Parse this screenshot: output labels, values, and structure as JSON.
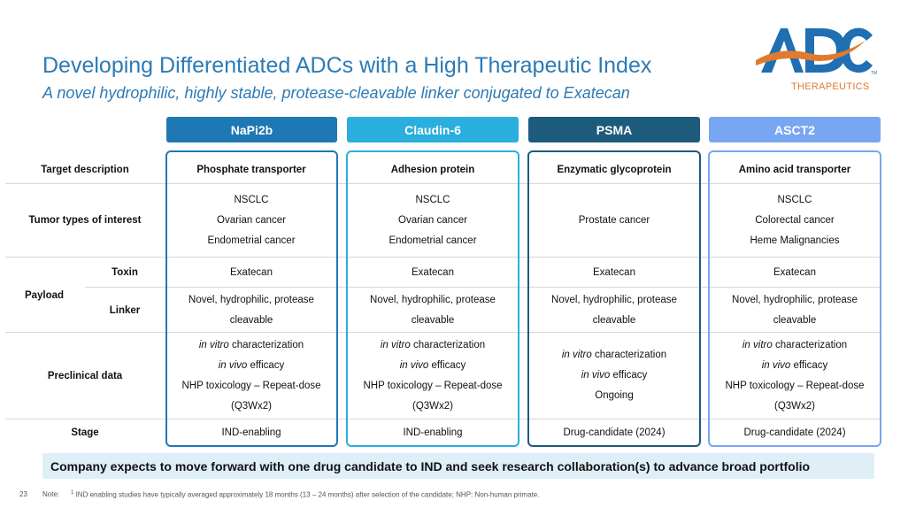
{
  "header": {
    "title": "Developing Differentiated ADCs with a High Therapeutic Index",
    "subtitle": "A novel hydrophilic, highly stable, protease-cleavable linker conjugated to Exatecan"
  },
  "logo": {
    "mark": "ADC",
    "tagline": "THERAPEUTICS",
    "tm": "TM",
    "colors": {
      "blue": "#1f6fb2",
      "orange": "#e07a2f"
    }
  },
  "row_labels": {
    "target": "Target description",
    "tumor": "Tumor types of interest",
    "payload": "Payload",
    "toxin": "Toxin",
    "linker": "Linker",
    "preclinical": "Preclinical data",
    "stage": "Stage"
  },
  "columns": [
    {
      "name": "NaPi2b",
      "color": "#1e78b4",
      "target": "Phosphate transporter",
      "tumor": [
        "NSCLC",
        "Ovarian cancer",
        "Endometrial cancer"
      ],
      "toxin": "Exatecan",
      "linker": [
        "Novel, hydrophilic, protease",
        "cleavable"
      ],
      "preclinical": [
        {
          "em": "in vitro",
          "rest": " characterization"
        },
        {
          "em": "in vivo",
          "rest": " efficacy"
        },
        {
          "em": "",
          "rest": "NHP toxicology – Repeat-dose"
        },
        {
          "em": "",
          "rest": "(Q3Wx2)"
        }
      ],
      "stage": "IND-enabling"
    },
    {
      "name": "Claudin-6",
      "color": "#2aaedd",
      "target": "Adhesion protein",
      "tumor": [
        "NSCLC",
        "Ovarian cancer",
        "Endometrial cancer"
      ],
      "toxin": "Exatecan",
      "linker": [
        "Novel, hydrophilic, protease",
        "cleavable"
      ],
      "preclinical": [
        {
          "em": "in vitro",
          "rest": " characterization"
        },
        {
          "em": "in vivo",
          "rest": " efficacy"
        },
        {
          "em": "",
          "rest": "NHP toxicology – Repeat-dose"
        },
        {
          "em": "",
          "rest": "(Q3Wx2)"
        }
      ],
      "stage": "IND-enabling"
    },
    {
      "name": "PSMA",
      "color": "#1d5b7c",
      "target": "Enzymatic glycoprotein",
      "tumor": [
        "Prostate cancer"
      ],
      "toxin": "Exatecan",
      "linker": [
        "Novel, hydrophilic, protease",
        "cleavable"
      ],
      "preclinical": [
        {
          "em": "in vitro",
          "rest": " characterization"
        },
        {
          "em": "in vivo",
          "rest": " efficacy"
        },
        {
          "em": "",
          "rest": "Ongoing"
        }
      ],
      "stage": "Drug-candidate (2024)"
    },
    {
      "name": "ASCT2",
      "color": "#78a6f2",
      "target": "Amino acid transporter",
      "tumor": [
        "NSCLC",
        "Colorectal cancer",
        "Heme Malignancies"
      ],
      "toxin": "Exatecan",
      "linker": [
        "Novel, hydrophilic, protease",
        "cleavable"
      ],
      "preclinical": [
        {
          "em": "in vitro",
          "rest": " characterization"
        },
        {
          "em": "in vivo",
          "rest": " efficacy"
        },
        {
          "em": "",
          "rest": "NHP toxicology – Repeat-dose"
        },
        {
          "em": "",
          "rest": "(Q3Wx2)"
        }
      ],
      "stage": "Drug-candidate (2024)"
    }
  ],
  "banner": "Company expects to move forward with one drug candidate to IND and seek research collaboration(s) to advance broad portfolio",
  "footer": {
    "page": "23",
    "note_label": "Note:",
    "note_sup": "1",
    "note_text": "IND enabling studies have typically averaged approximately 18 months (13 – 24 months) after selection of the candidate; NHP: Non-human primate."
  }
}
